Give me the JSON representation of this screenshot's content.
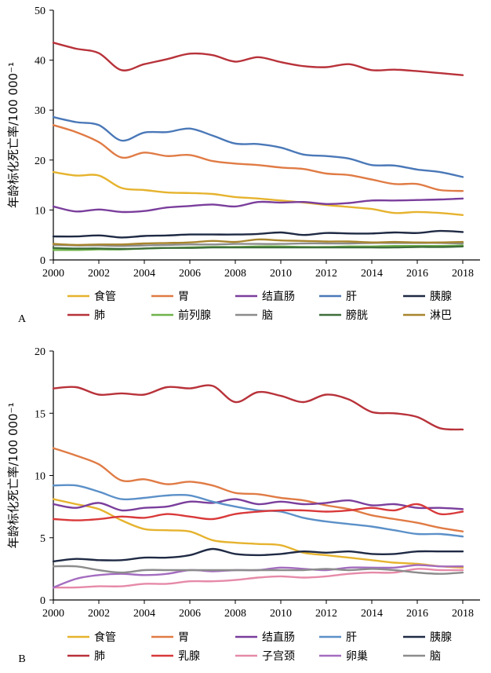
{
  "chart_data": [
    {
      "type": "line",
      "panel_label": "A",
      "ylabel": "年龄标化死亡率/100 000⁻¹",
      "xlabel": "",
      "x": [
        2000,
        2001,
        2002,
        2003,
        2004,
        2005,
        2006,
        2007,
        2008,
        2009,
        2010,
        2011,
        2012,
        2013,
        2014,
        2015,
        2016,
        2017,
        2018
      ],
      "xticks": [
        "2000",
        "2002",
        "2004",
        "2006",
        "2008",
        "2010",
        "2012",
        "2014",
        "2016",
        "2018"
      ],
      "yticks": [
        "0",
        "10",
        "20",
        "30",
        "40",
        "50"
      ],
      "ylim": [
        0,
        50
      ],
      "grid": false,
      "legend_position": "bottom",
      "series": [
        {
          "name": "食管",
          "color": "#e6b32e",
          "values": [
            17.6,
            16.9,
            16.9,
            14.4,
            14.0,
            13.5,
            13.4,
            13.2,
            12.6,
            12.3,
            11.9,
            11.5,
            11.0,
            10.6,
            10.2,
            9.4,
            9.6,
            9.4,
            9.0
          ]
        },
        {
          "name": "胃",
          "color": "#e07b45",
          "values": [
            27.0,
            25.6,
            23.6,
            20.5,
            21.5,
            20.8,
            21.0,
            19.8,
            19.3,
            19.0,
            18.5,
            18.2,
            17.3,
            17.0,
            16.1,
            15.2,
            15.2,
            14.0,
            13.8
          ]
        },
        {
          "name": "结直肠",
          "color": "#7a3e9c",
          "values": [
            10.7,
            9.7,
            10.1,
            9.6,
            9.8,
            10.5,
            10.8,
            11.1,
            10.7,
            11.6,
            11.5,
            11.6,
            11.2,
            11.4,
            11.9,
            11.9,
            12.0,
            12.1,
            12.3
          ]
        },
        {
          "name": "肝",
          "color": "#4a78b8",
          "values": [
            28.6,
            27.6,
            27.0,
            23.9,
            25.5,
            25.6,
            26.3,
            24.9,
            23.3,
            23.2,
            22.5,
            21.1,
            20.8,
            20.3,
            19.0,
            18.9,
            18.1,
            17.6,
            16.6
          ]
        },
        {
          "name": "胰腺",
          "color": "#1f2a44",
          "values": [
            4.7,
            4.7,
            4.9,
            4.5,
            4.8,
            4.9,
            5.1,
            5.1,
            5.1,
            5.2,
            5.5,
            5.0,
            5.4,
            5.3,
            5.3,
            5.5,
            5.4,
            5.8,
            5.6
          ]
        },
        {
          "name": "肺",
          "color": "#b8323a",
          "values": [
            43.5,
            42.3,
            41.4,
            38.0,
            39.2,
            40.2,
            41.3,
            41.0,
            39.7,
            40.6,
            39.6,
            38.8,
            38.6,
            39.2,
            38.0,
            38.1,
            37.8,
            37.4,
            37.0
          ]
        },
        {
          "name": "前列腺",
          "color": "#6fb34a",
          "values": [
            2.0,
            2.0,
            2.1,
            2.1,
            2.3,
            2.4,
            2.5,
            2.6,
            2.6,
            2.7,
            2.7,
            2.6,
            2.6,
            2.7,
            2.7,
            2.8,
            2.8,
            2.8,
            2.9
          ]
        },
        {
          "name": "脑",
          "color": "#8c8c8c",
          "values": [
            3.0,
            2.9,
            2.9,
            2.8,
            2.9,
            3.0,
            3.1,
            3.1,
            3.2,
            3.2,
            3.2,
            3.3,
            3.3,
            3.3,
            3.4,
            3.4,
            3.4,
            3.4,
            3.3
          ]
        },
        {
          "name": "膀胱",
          "color": "#3e6e3a",
          "values": [
            2.4,
            2.3,
            2.3,
            2.2,
            2.3,
            2.4,
            2.4,
            2.5,
            2.5,
            2.5,
            2.5,
            2.5,
            2.5,
            2.5,
            2.5,
            2.5,
            2.6,
            2.6,
            2.7
          ]
        },
        {
          "name": "淋巴",
          "color": "#a8862e",
          "values": [
            3.2,
            3.0,
            3.1,
            3.1,
            3.3,
            3.4,
            3.5,
            3.8,
            3.6,
            4.1,
            3.9,
            3.8,
            3.7,
            3.7,
            3.5,
            3.6,
            3.5,
            3.5,
            3.6
          ]
        }
      ]
    },
    {
      "type": "line",
      "panel_label": "B",
      "ylabel": "年龄标化死亡率/100 000⁻¹",
      "xlabel": "",
      "x": [
        2000,
        2001,
        2002,
        2003,
        2004,
        2005,
        2006,
        2007,
        2008,
        2009,
        2010,
        2011,
        2012,
        2013,
        2014,
        2015,
        2016,
        2017,
        2018
      ],
      "xticks": [
        "2000",
        "2002",
        "2004",
        "2006",
        "2008",
        "2010",
        "2012",
        "2014",
        "2016",
        "2018"
      ],
      "yticks": [
        "0",
        "5",
        "10",
        "15",
        "20"
      ],
      "ylim": [
        0,
        20
      ],
      "grid": false,
      "legend_position": "bottom",
      "series": [
        {
          "name": "食管",
          "color": "#e6b32e",
          "values": [
            8.1,
            7.7,
            7.3,
            6.4,
            5.7,
            5.6,
            5.5,
            4.8,
            4.6,
            4.5,
            4.4,
            3.8,
            3.6,
            3.4,
            3.2,
            3.0,
            2.9,
            2.7,
            2.6
          ]
        },
        {
          "name": "胃",
          "color": "#e07b45",
          "values": [
            12.2,
            11.6,
            10.9,
            9.6,
            9.7,
            9.3,
            9.5,
            9.2,
            8.6,
            8.5,
            8.2,
            8.0,
            7.6,
            7.3,
            6.8,
            6.5,
            6.2,
            5.8,
            5.5
          ]
        },
        {
          "name": "结直肠",
          "color": "#7a3e9c",
          "values": [
            7.7,
            7.4,
            7.8,
            7.2,
            7.4,
            7.5,
            7.9,
            7.8,
            8.1,
            7.7,
            7.9,
            7.7,
            7.8,
            8.0,
            7.6,
            7.7,
            7.4,
            7.4,
            7.3
          ]
        },
        {
          "name": "肝",
          "color": "#5b90c8",
          "values": [
            9.2,
            9.2,
            8.7,
            8.1,
            8.2,
            8.4,
            8.4,
            7.9,
            7.5,
            7.2,
            7.1,
            6.6,
            6.3,
            6.1,
            5.9,
            5.6,
            5.3,
            5.3,
            5.1
          ]
        },
        {
          "name": "胰腺",
          "color": "#1f2a44",
          "values": [
            3.1,
            3.3,
            3.2,
            3.2,
            3.4,
            3.4,
            3.6,
            4.1,
            3.7,
            3.6,
            3.7,
            3.9,
            3.8,
            3.9,
            3.7,
            3.7,
            3.9,
            3.9,
            3.9
          ]
        },
        {
          "name": "肺",
          "color": "#b8323a",
          "values": [
            17.0,
            17.1,
            16.5,
            16.6,
            16.5,
            17.1,
            17.0,
            17.2,
            15.9,
            16.7,
            16.4,
            15.9,
            16.5,
            16.1,
            15.1,
            15.0,
            14.7,
            13.8,
            13.7
          ]
        },
        {
          "name": "乳腺",
          "color": "#d9393a",
          "values": [
            6.5,
            6.4,
            6.5,
            6.7,
            6.6,
            6.9,
            6.7,
            6.5,
            6.9,
            7.1,
            7.2,
            7.2,
            7.1,
            7.2,
            7.4,
            7.2,
            7.7,
            6.9,
            7.1
          ]
        },
        {
          "name": "子宫颈",
          "color": "#e68aa8",
          "values": [
            1.0,
            1.0,
            1.1,
            1.1,
            1.3,
            1.3,
            1.5,
            1.5,
            1.6,
            1.8,
            1.9,
            1.8,
            1.9,
            2.1,
            2.2,
            2.2,
            2.5,
            2.4,
            2.4
          ]
        },
        {
          "name": "卵巢",
          "color": "#a46cc0",
          "values": [
            1.0,
            1.7,
            2.0,
            2.1,
            2.0,
            2.1,
            2.4,
            2.3,
            2.4,
            2.4,
            2.6,
            2.5,
            2.4,
            2.6,
            2.6,
            2.6,
            2.8,
            2.7,
            2.7
          ]
        },
        {
          "name": "脑",
          "color": "#8c8c8c",
          "values": [
            2.7,
            2.7,
            2.4,
            2.2,
            2.4,
            2.4,
            2.4,
            2.4,
            2.4,
            2.4,
            2.4,
            2.4,
            2.5,
            2.4,
            2.5,
            2.4,
            2.2,
            2.1,
            2.2
          ]
        }
      ]
    }
  ]
}
